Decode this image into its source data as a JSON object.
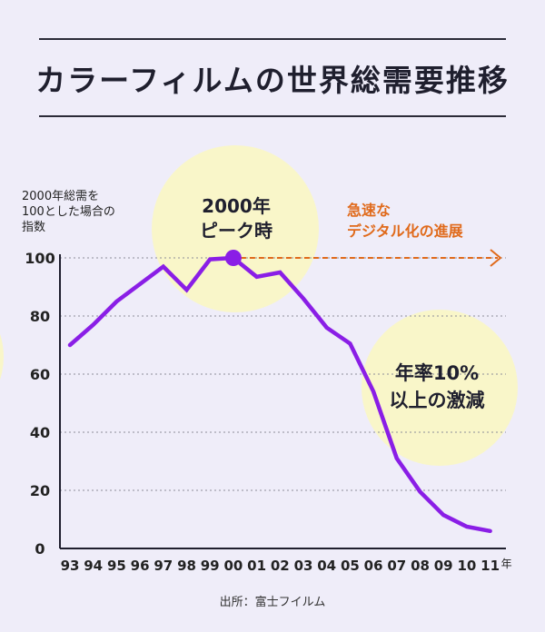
{
  "title": "カラーフィルムの世界総需要推移",
  "ylabel_lines": [
    "2000年総需を",
    "100とした場合の",
    "指数"
  ],
  "peak_label_lines": [
    "2000年",
    "ピーク時"
  ],
  "digital_label_lines": [
    "急速な",
    "デジタル化の進展"
  ],
  "decline_label_lines": [
    "年率10%",
    "以上の激減"
  ],
  "source": "出所：富士フイルム",
  "x_unit": "年",
  "colors": {
    "line": "#8a1ee6",
    "arrow": "#e06a1b",
    "bubble": "#f9f6c9",
    "background": "#efedf9"
  },
  "chart_data": {
    "type": "line",
    "title": "カラーフィルムの世界総需要推移",
    "ylabel": "2000年総需を100とした場合の指数",
    "xlabel": "",
    "categories": [
      "93",
      "94",
      "95",
      "96",
      "97",
      "98",
      "99",
      "00",
      "01",
      "02",
      "03",
      "04",
      "05",
      "06",
      "07",
      "08",
      "09",
      "10",
      "11"
    ],
    "values": [
      70,
      77,
      85,
      91,
      97,
      89,
      99.5,
      100,
      93.5,
      95,
      86,
      76,
      70.5,
      54,
      31,
      19.5,
      11.5,
      7.5,
      6
    ],
    "ylim": [
      0,
      100
    ],
    "yticks": [
      0,
      20,
      40,
      60,
      80,
      100
    ],
    "grid": true,
    "highlight_index": 7
  }
}
